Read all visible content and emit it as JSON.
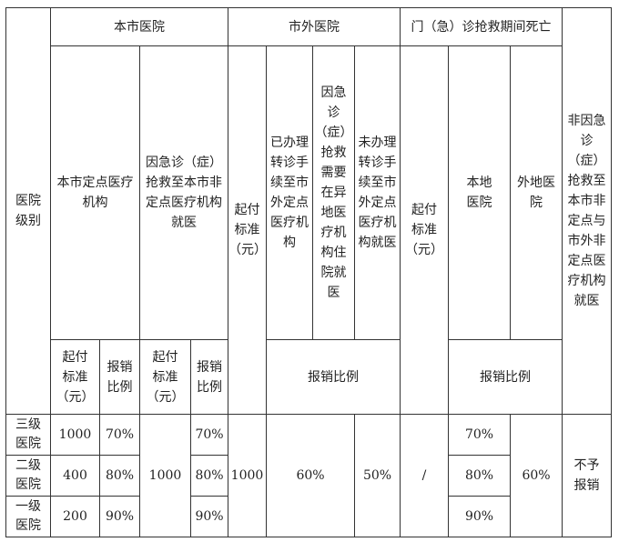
{
  "header": {
    "level": "医院\n级别",
    "local": "本市医院",
    "outside": "市外医院",
    "death": "门（急）诊抢救期间死亡",
    "non_emergency": "非因急\n诊（症）\n抢救至\n本市非\n定点与\n市外非\n定点医\n疗机构\n就医",
    "local_designated": "本市定点医疗\n机构",
    "local_emergency": "因急诊（症）\n抢救至本市非\n定点医疗机构\n就医",
    "outside_deductible": "起付\n标准\n（元）",
    "outside_transferred": "已办理\n转诊手\n续至市\n外定点\n医疗机\n构",
    "outside_emergency": "因急\n诊\n（症）\n抢救\n需要\n在异\n地医\n疗机\n构住\n院就\n医",
    "outside_untransferred": "未办理\n转诊手\n续至市\n外定点\n医疗机\n构就医",
    "death_deductible": "起付\n标准\n（元）",
    "death_local": "本地\n医院",
    "death_outside": "外地医\n院",
    "deductible": "起付\n标准\n（元）",
    "ratio": "报销\n比例",
    "ratio_wide": "报销比例"
  },
  "rows": [
    {
      "level": "三级\n医院",
      "local_deductible": "1000",
      "local_ratio": "70%",
      "emergency_ratio": "70%",
      "death_local_ratio": "70%"
    },
    {
      "level": "二级\n医院",
      "local_deductible": "400",
      "local_ratio": "80%",
      "emergency_ratio": "80%",
      "death_local_ratio": "80%"
    },
    {
      "level": "一级\n医院",
      "local_deductible": "200",
      "local_ratio": "90%",
      "emergency_ratio": "90%",
      "death_local_ratio": "90%"
    }
  ],
  "merged": {
    "emergency_deductible": "1000",
    "outside_deductible": "1000",
    "outside_ratio": "60%",
    "untransferred_ratio": "50%",
    "death_deductible": "/",
    "death_outside_ratio": "60%",
    "non_emergency": "不予\n报销"
  }
}
